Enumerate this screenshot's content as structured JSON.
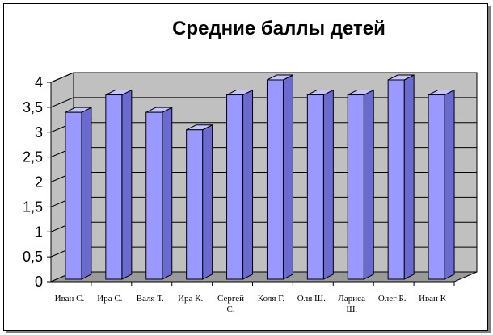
{
  "chart_data": {
    "type": "bar",
    "title": "Средние баллы детей",
    "xlabel": "",
    "ylabel": "",
    "categories": [
      "Иван С.",
      "Ира С.",
      "Валя Т.",
      "Ира К.",
      "Сергей С.",
      "Коля Г.",
      "Оля Ш.",
      "Лариса Ш.",
      "Олег Б.",
      "Иван К"
    ],
    "values": [
      3.35,
      3.7,
      3.35,
      3.0,
      3.7,
      4.0,
      3.7,
      3.7,
      4.0,
      3.7
    ],
    "yticks": [
      "0",
      "0,5",
      "1",
      "1,5",
      "2",
      "2,5",
      "3",
      "3,5",
      "4"
    ],
    "ylim": [
      0,
      4
    ],
    "grid": true,
    "legend": "none",
    "style": "3d-column",
    "colors": {
      "bar_front": "#9999ff",
      "bar_side": "#6a6ad0",
      "bar_top": "#c4c4ff",
      "wall": "#c0c0c0",
      "floor": "#9a9a9a"
    }
  }
}
